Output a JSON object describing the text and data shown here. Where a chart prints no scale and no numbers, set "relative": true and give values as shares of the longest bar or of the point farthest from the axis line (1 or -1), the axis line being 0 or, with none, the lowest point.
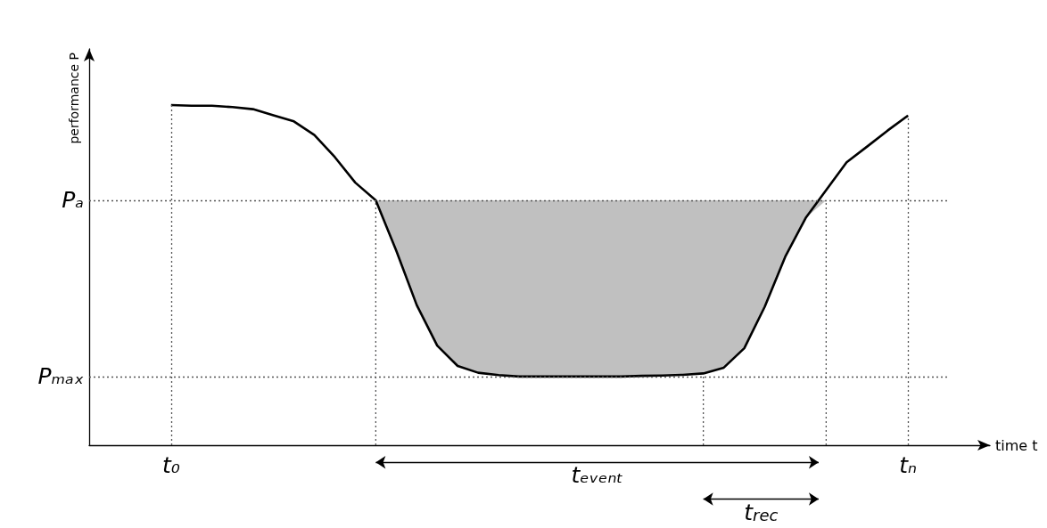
{
  "chart_data": {
    "type": "line",
    "relative": true,
    "xlabel": "time t",
    "ylabel": "performance P",
    "color": "#000000",
    "categories": [
      null,
      null,
      null,
      null,
      "t₀",
      null,
      null,
      null,
      null,
      null,
      null,
      null,
      null,
      null,
      null,
      null,
      null,
      null,
      null,
      null,
      null,
      null,
      null,
      null,
      null,
      null,
      null,
      null,
      null,
      null,
      null,
      null,
      null,
      null,
      null,
      null,
      null,
      null,
      null,
      null,
      "tₙ",
      null,
      null,
      null,
      null
    ],
    "values": [
      null,
      null,
      null,
      null,
      1.0,
      0.998,
      0.998,
      0.994,
      0.988,
      0.97,
      0.952,
      0.912,
      0.847,
      0.772,
      0.72,
      0.572,
      0.412,
      0.293,
      0.233,
      0.213,
      0.206,
      0.202,
      0.202,
      0.202,
      0.202,
      0.202,
      0.202,
      0.204,
      0.205,
      0.207,
      0.211,
      0.228,
      0.285,
      0.407,
      0.554,
      0.668,
      0.75,
      0.832,
      0.878,
      0.925,
      0.969,
      null,
      null,
      null,
      null
    ],
    "ref_lines": [
      {
        "axis": "y",
        "value": 0.72,
        "label": "Pₐ",
        "line_style": "dotted"
      },
      {
        "axis": "y",
        "value": 0.202,
        "label": "Pₘₐₓ",
        "line_style": "dotted"
      }
    ],
    "grid": "x",
    "annotations": [
      "tₑᵥₑₙₜ",
      "t$_{rec}$"
    ],
    "marker": "none",
    "line_style": "solid"
  }
}
